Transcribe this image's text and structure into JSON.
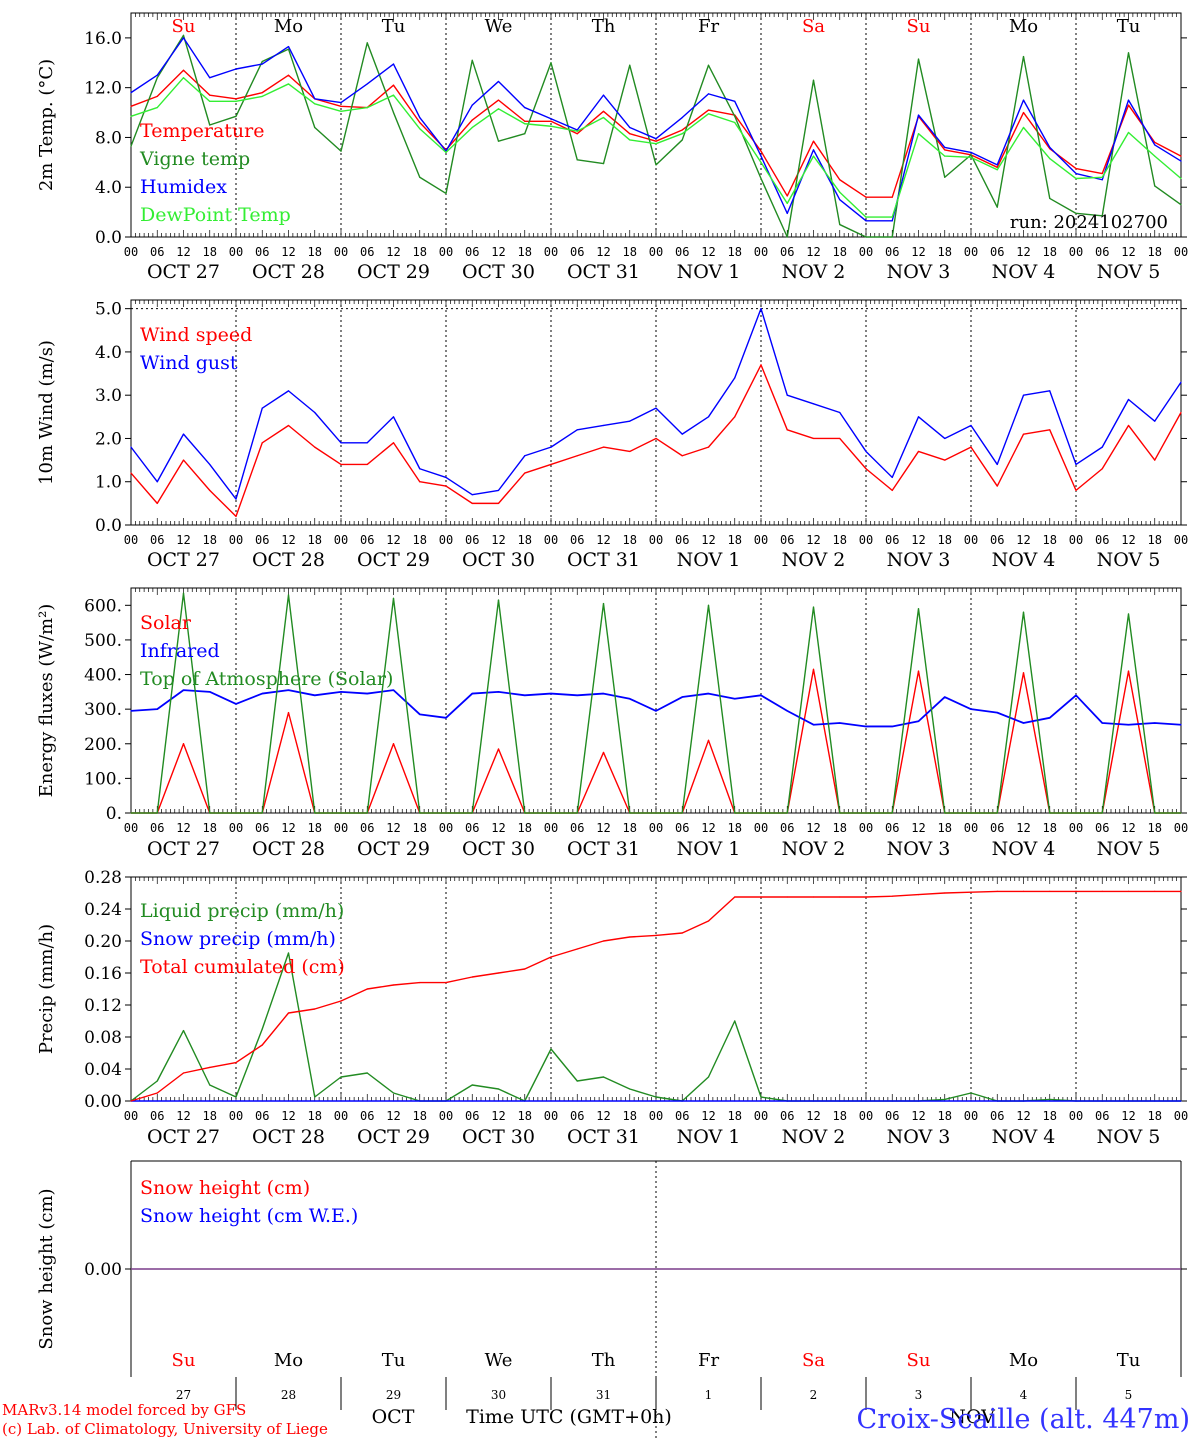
{
  "colors": {
    "temperature": "#ff0000",
    "vigne": "#228b22",
    "humidex": "#0000ff",
    "dewpoint": "#33ee33",
    "weekend": "#ff0000",
    "weekday": "#000000",
    "footer_left": "#ff0000",
    "footer_right": "#3333ff",
    "snow_line": "#7a3c8a"
  },
  "days": [
    "Su",
    "Mo",
    "Tu",
    "We",
    "Th",
    "Fr",
    "Sa",
    "Su",
    "Mo",
    "Tu"
  ],
  "weekend_flags": [
    true,
    false,
    false,
    false,
    false,
    false,
    true,
    true,
    false,
    false
  ],
  "date_labels": [
    "OCT 27",
    "OCT 28",
    "OCT 29",
    "OCT 30",
    "OCT 31",
    "NOV 1",
    "NOV 2",
    "NOV 3",
    "NOV 4",
    "NOV 5"
  ],
  "hour_labels": [
    "00",
    "06",
    "12",
    "18"
  ],
  "hour_label_final": "00",
  "bottom_day_numbers": [
    "27",
    "28",
    "29",
    "30",
    "31",
    "1",
    "2",
    "3",
    "4",
    "5"
  ],
  "bottom_months": {
    "oct": "OCT",
    "nov": "NOV"
  },
  "x_axis_title": "Time UTC (GMT+0h)",
  "footer": {
    "model": "MARv3.14 model forced by GFS",
    "lab": "(c) Lab. of Climatology, University of Liege",
    "station": "Croix-Scaille (alt. 447m)"
  },
  "chart_data": [
    {
      "type": "line",
      "panel": "temperature",
      "ylabel": "2m Temp. (°C)",
      "ylim": [
        0,
        18
      ],
      "yticks": [
        0,
        4,
        8,
        12,
        16
      ],
      "ytick_labels": [
        "0.0",
        "4.0",
        "8.0",
        "12.0",
        "16.0"
      ],
      "run_label": "run: 2024102700",
      "legend": [
        "Temperature",
        "Vigne temp",
        "Humidex",
        "DewPoint Temp"
      ],
      "x_hours": [
        0,
        6,
        12,
        18,
        24,
        30,
        36,
        42,
        48,
        54,
        60,
        66,
        72,
        78,
        84,
        90,
        96,
        102,
        108,
        114,
        120,
        126,
        132,
        138,
        144,
        150,
        156,
        162,
        168,
        174,
        180,
        186,
        192,
        198,
        204,
        210,
        216,
        222,
        228,
        234,
        240
      ],
      "series": [
        {
          "name": "Temperature",
          "color": "#ff0000",
          "values": [
            10.5,
            11.3,
            13.4,
            11.4,
            11.1,
            11.6,
            13.0,
            11.1,
            10.5,
            10.4,
            12.2,
            9.2,
            7.0,
            9.4,
            11.0,
            9.3,
            9.3,
            8.3,
            10.1,
            8.3,
            7.7,
            8.6,
            10.2,
            9.8,
            6.9,
            3.3,
            7.7,
            4.6,
            3.2,
            3.2,
            9.7,
            7.0,
            6.6,
            5.6,
            10.0,
            7.1,
            5.5,
            5.1,
            10.6,
            7.6,
            6.5
          ]
        },
        {
          "name": "Vigne temp",
          "color": "#228b22",
          "values": [
            7.3,
            12.8,
            16.2,
            9.0,
            9.7,
            14.1,
            15.1,
            8.8,
            6.9,
            15.6,
            10.0,
            4.8,
            3.5,
            14.2,
            7.7,
            8.3,
            14.0,
            6.2,
            5.9,
            13.8,
            5.8,
            7.8,
            13.8,
            9.7,
            4.7,
            0.0,
            12.6,
            1.0,
            0.0,
            0.0,
            14.3,
            4.8,
            6.6,
            2.4,
            14.5,
            3.1,
            1.9,
            1.7,
            14.8,
            4.1,
            2.6
          ]
        },
        {
          "name": "Humidex",
          "color": "#0000ff",
          "values": [
            11.6,
            13.0,
            16.0,
            12.8,
            13.5,
            13.9,
            15.3,
            11.1,
            10.8,
            12.3,
            13.9,
            9.6,
            6.9,
            10.6,
            12.5,
            10.4,
            9.5,
            8.6,
            11.4,
            8.8,
            7.9,
            9.6,
            11.5,
            10.9,
            6.5,
            1.9,
            7.0,
            3.0,
            1.3,
            1.3,
            9.8,
            7.2,
            6.8,
            5.8,
            11.0,
            7.2,
            5.1,
            4.6,
            11.0,
            7.4,
            6.1
          ]
        },
        {
          "name": "DewPoint Temp",
          "color": "#33ee33",
          "values": [
            9.7,
            10.4,
            12.8,
            10.9,
            10.9,
            11.3,
            12.3,
            10.7,
            10.1,
            10.4,
            11.4,
            8.7,
            6.8,
            8.8,
            10.3,
            9.1,
            8.9,
            8.5,
            9.6,
            7.8,
            7.5,
            8.3,
            9.9,
            9.2,
            6.0,
            2.7,
            6.5,
            3.6,
            1.6,
            1.6,
            8.3,
            6.5,
            6.4,
            5.4,
            8.8,
            6.3,
            4.7,
            4.8,
            8.4,
            6.5,
            4.7
          ]
        }
      ]
    },
    {
      "type": "line",
      "panel": "wind",
      "ylabel": "10m Wind (m/s)",
      "ylim": [
        0,
        5.2
      ],
      "yticks": [
        0,
        1,
        2,
        3,
        4,
        5
      ],
      "ytick_labels": [
        "0.0",
        "1.0",
        "2.0",
        "3.0",
        "4.0",
        "5.0"
      ],
      "legend": [
        "Wind speed",
        "Wind gust"
      ],
      "x_hours": [
        0,
        6,
        12,
        18,
        24,
        30,
        36,
        42,
        48,
        54,
        60,
        66,
        72,
        78,
        84,
        90,
        96,
        102,
        108,
        114,
        120,
        126,
        132,
        138,
        144,
        150,
        156,
        162,
        168,
        174,
        180,
        186,
        192,
        198,
        204,
        210,
        216,
        222,
        228,
        234,
        240
      ],
      "series": [
        {
          "name": "Wind speed",
          "color": "#ff0000",
          "values": [
            1.2,
            0.5,
            1.5,
            0.8,
            0.2,
            1.9,
            2.3,
            1.8,
            1.4,
            1.4,
            1.9,
            1.0,
            0.9,
            0.5,
            0.5,
            1.2,
            1.4,
            1.6,
            1.8,
            1.7,
            2.0,
            1.6,
            1.8,
            2.5,
            3.7,
            2.2,
            2.0,
            2.0,
            1.3,
            0.8,
            1.7,
            1.5,
            1.8,
            0.9,
            2.1,
            2.2,
            0.8,
            1.3,
            2.3,
            1.5,
            2.6
          ]
        },
        {
          "name": "Wind gust",
          "color": "#0000ff",
          "values": [
            1.8,
            1.0,
            2.1,
            1.4,
            0.6,
            2.7,
            3.1,
            2.6,
            1.9,
            1.9,
            2.5,
            1.3,
            1.1,
            0.7,
            0.8,
            1.6,
            1.8,
            2.2,
            2.3,
            2.4,
            2.7,
            2.1,
            2.5,
            3.4,
            5.0,
            3.0,
            2.8,
            2.6,
            1.7,
            1.1,
            2.5,
            2.0,
            2.3,
            1.4,
            3.0,
            3.1,
            1.4,
            1.8,
            2.9,
            2.4,
            3.3
          ]
        }
      ]
    },
    {
      "type": "line",
      "panel": "energy",
      "ylabel": "Energy fluxes (W/m²)",
      "ylim": [
        0,
        650
      ],
      "yticks": [
        0,
        100,
        200,
        300,
        400,
        500,
        600
      ],
      "ytick_labels": [
        "0.",
        "100.",
        "200.",
        "300.",
        "400.",
        "500.",
        "600."
      ],
      "legend": [
        "Solar",
        "Infrared",
        "Top of Atmosphere (Solar)"
      ],
      "x_hours": [
        0,
        6,
        12,
        18,
        24,
        30,
        36,
        42,
        48,
        54,
        60,
        66,
        72,
        78,
        84,
        90,
        96,
        102,
        108,
        114,
        120,
        126,
        132,
        138,
        144,
        150,
        156,
        162,
        168,
        174,
        180,
        186,
        192,
        198,
        204,
        210,
        216,
        222,
        228,
        234,
        240
      ],
      "series": [
        {
          "name": "Solar",
          "color": "#ff0000",
          "values": [
            0,
            0,
            200,
            0,
            0,
            0,
            290,
            0,
            0,
            0,
            200,
            0,
            0,
            0,
            185,
            0,
            0,
            0,
            175,
            0,
            0,
            0,
            210,
            0,
            0,
            0,
            415,
            0,
            0,
            0,
            410,
            0,
            0,
            0,
            405,
            0,
            0,
            0,
            410,
            0,
            0
          ]
        },
        {
          "name": "Infrared",
          "color": "#0000ff",
          "values": [
            295,
            300,
            355,
            350,
            315,
            345,
            355,
            340,
            350,
            345,
            355,
            285,
            275,
            345,
            350,
            340,
            345,
            340,
            345,
            330,
            295,
            335,
            345,
            330,
            340,
            295,
            255,
            260,
            250,
            250,
            265,
            335,
            300,
            290,
            260,
            275,
            340,
            260,
            255,
            260,
            255
          ]
        },
        {
          "name": "Top of Atmosphere (Solar)",
          "color": "#228b22",
          "values": [
            0,
            0,
            635,
            0,
            0,
            0,
            630,
            0,
            0,
            0,
            620,
            0,
            0,
            0,
            615,
            0,
            0,
            0,
            605,
            0,
            0,
            0,
            600,
            0,
            0,
            0,
            595,
            0,
            0,
            0,
            590,
            0,
            0,
            0,
            580,
            0,
            0,
            0,
            575,
            0,
            0
          ]
        }
      ]
    },
    {
      "type": "line",
      "panel": "precip",
      "ylabel": "Precip (mm/h)",
      "ylim": [
        0,
        0.28
      ],
      "yticks": [
        0,
        0.04,
        0.08,
        0.12,
        0.16,
        0.2,
        0.24,
        0.28
      ],
      "ytick_labels": [
        "0.00",
        "0.04",
        "0.08",
        "0.12",
        "0.16",
        "0.20",
        "0.24",
        "0.28"
      ],
      "legend": [
        "Liquid precip (mm/h)",
        "Snow precip (mm/h)",
        "Total cumulated (cm)"
      ],
      "x_hours": [
        0,
        6,
        12,
        18,
        24,
        30,
        36,
        42,
        48,
        54,
        60,
        66,
        72,
        78,
        84,
        90,
        96,
        102,
        108,
        114,
        120,
        126,
        132,
        138,
        144,
        150,
        156,
        162,
        168,
        174,
        180,
        186,
        192,
        198,
        204,
        210,
        216,
        222,
        228,
        234,
        240
      ],
      "series": [
        {
          "name": "Liquid precip (mm/h)",
          "color": "#228b22",
          "values": [
            0.0,
            0.025,
            0.088,
            0.02,
            0.005,
            0.09,
            0.185,
            0.005,
            0.03,
            0.035,
            0.01,
            0.0,
            0.0,
            0.02,
            0.015,
            0.0,
            0.065,
            0.025,
            0.03,
            0.015,
            0.005,
            0.0,
            0.03,
            0.1,
            0.005,
            0.0,
            0.0,
            0.0,
            0.0,
            0.0,
            0.0,
            0.002,
            0.01,
            0.0,
            0.0,
            0.002,
            0.0,
            0.0,
            0.0,
            0.0,
            0.0
          ]
        },
        {
          "name": "Snow precip (mm/h)",
          "color": "#0000ff",
          "values": [
            0,
            0,
            0,
            0,
            0,
            0,
            0,
            0,
            0,
            0,
            0,
            0,
            0,
            0,
            0,
            0,
            0,
            0,
            0,
            0,
            0,
            0,
            0,
            0,
            0,
            0,
            0,
            0,
            0,
            0,
            0,
            0,
            0,
            0,
            0,
            0,
            0,
            0,
            0,
            0,
            0
          ]
        },
        {
          "name": "Total cumulated (cm)",
          "color": "#ff0000",
          "values": [
            0.0,
            0.01,
            0.035,
            0.042,
            0.048,
            0.07,
            0.11,
            0.115,
            0.125,
            0.14,
            0.145,
            0.148,
            0.148,
            0.155,
            0.16,
            0.165,
            0.18,
            0.19,
            0.2,
            0.205,
            0.207,
            0.21,
            0.225,
            0.255,
            0.255,
            0.255,
            0.255,
            0.255,
            0.255,
            0.256,
            0.258,
            0.26,
            0.261,
            0.262,
            0.262,
            0.262,
            0.262,
            0.262,
            0.262,
            0.262,
            0.262
          ]
        }
      ]
    },
    {
      "type": "line",
      "panel": "snow",
      "ylabel": "Snow height (cm)",
      "ylim": [
        -1,
        1
      ],
      "yticks": [
        0
      ],
      "ytick_labels": [
        "0.00"
      ],
      "legend": [
        "Snow height (cm)",
        "Snow height (cm W.E.)"
      ],
      "x_hours": [
        0,
        240
      ],
      "series": [
        {
          "name": "Snow height (cm)",
          "color": "#ff0000",
          "values": [
            0,
            0
          ]
        },
        {
          "name": "Snow height (cm W.E.)",
          "color": "#0000ff",
          "values": [
            0,
            0
          ]
        }
      ]
    }
  ]
}
